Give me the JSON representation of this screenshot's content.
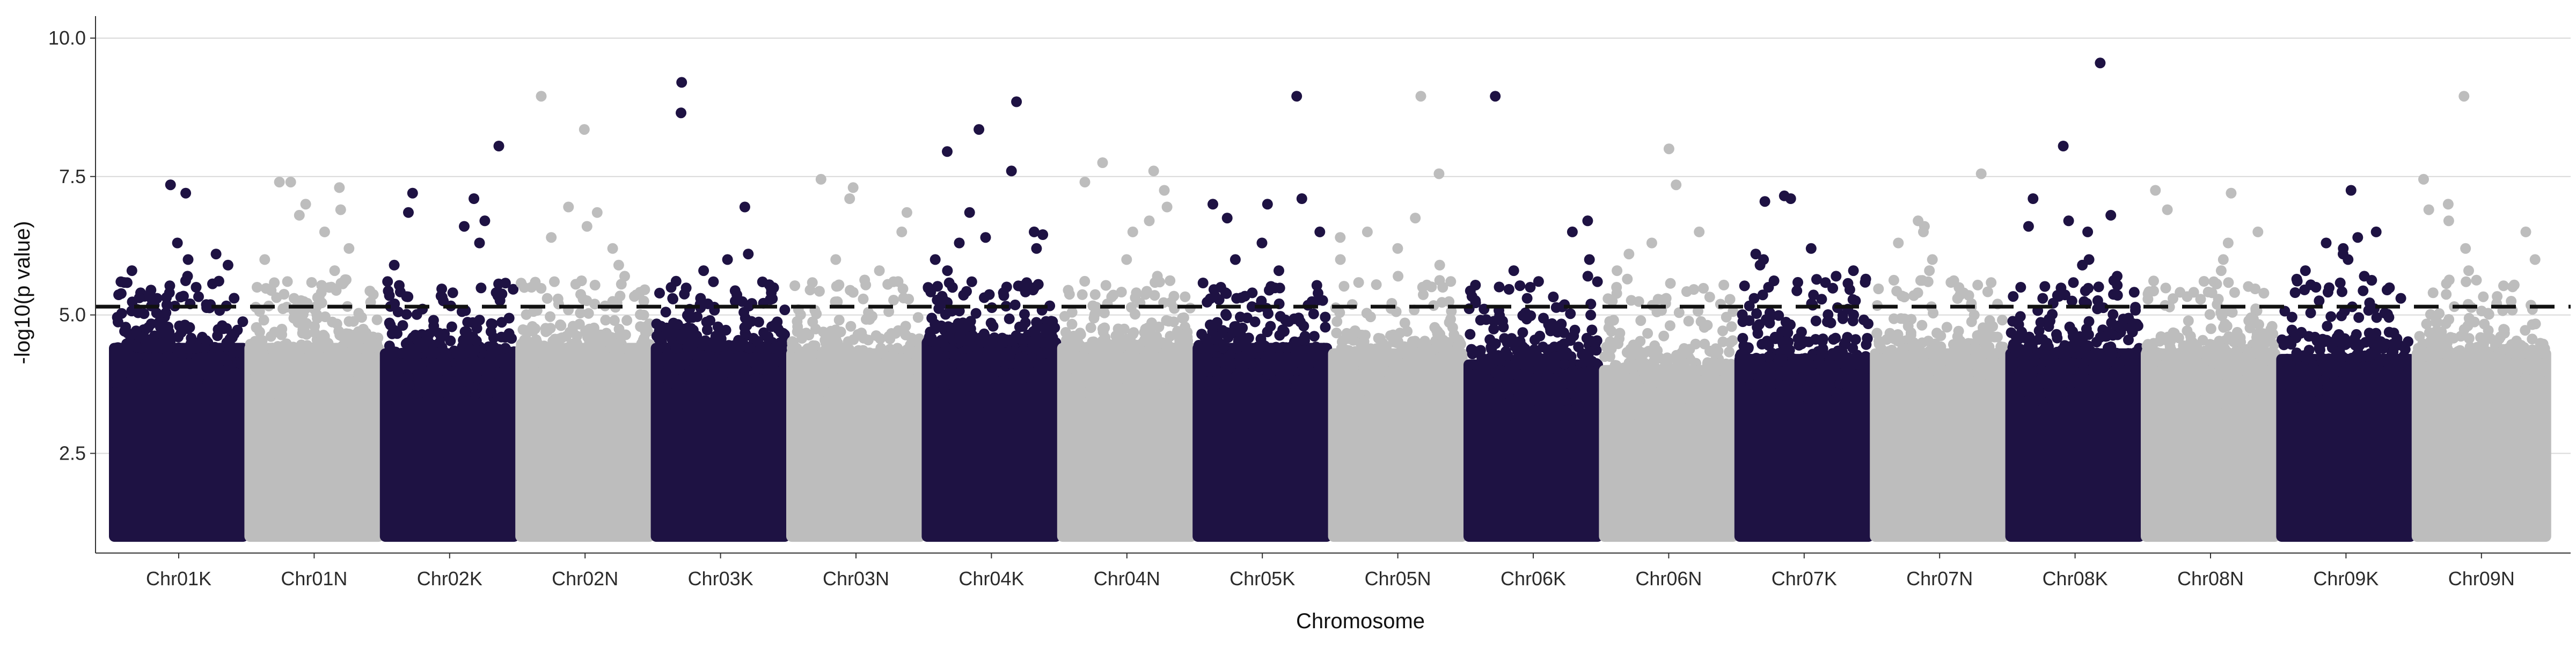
{
  "colors": {
    "dark": "#1e1243",
    "light": "#bdbdbd",
    "threshold": "#111111",
    "axis": "#333333",
    "grid": "#d9d9d9"
  },
  "chart_data": {
    "type": "scatter",
    "title": "",
    "xlabel": "Chromosome",
    "ylabel": "-log10(p value)",
    "ylim": [
      0.7,
      10.3
    ],
    "yticks": [
      2.5,
      5.0,
      7.5,
      10.0
    ],
    "ytick_labels": [
      "2.5",
      "5.0",
      "7.5",
      "10.0"
    ],
    "grid": "horizontal at y-ticks",
    "legend": "none",
    "threshold": 5.15,
    "chromosomes": [
      "Chr01K",
      "Chr01N",
      "Chr02K",
      "Chr02N",
      "Chr03K",
      "Chr03N",
      "Chr04K",
      "Chr04N",
      "Chr05K",
      "Chr05N",
      "Chr06K",
      "Chr06N",
      "Chr07K",
      "Chr07N",
      "Chr08K",
      "Chr08N",
      "Chr09K",
      "Chr09N"
    ],
    "point_colors": [
      "dark",
      "light",
      "dark",
      "light",
      "dark",
      "light",
      "dark",
      "light",
      "dark",
      "light",
      "dark",
      "light",
      "dark",
      "light",
      "dark",
      "light",
      "dark",
      "light"
    ],
    "dense_base": {
      "min": 1.0,
      "max_by_chromosome": [
        4.4,
        4.4,
        4.3,
        4.4,
        4.4,
        4.3,
        4.5,
        4.4,
        4.4,
        4.3,
        4.1,
        4.0,
        4.2,
        4.3,
        4.3,
        4.3,
        4.2,
        4.3
      ]
    },
    "mid_points_per_chromosome": 110,
    "peaks": [
      {
        "chrom": "Chr01K",
        "values": [
          7.35,
          7.2,
          6.3,
          6.1,
          6.0,
          5.9,
          5.8,
          5.7,
          5.6,
          5.5,
          5.4,
          5.3,
          5.2
        ]
      },
      {
        "chrom": "Chr01N",
        "values": [
          7.4,
          7.4,
          7.3,
          7.0,
          6.9,
          6.8,
          6.5,
          6.2,
          6.0,
          5.8,
          5.5,
          5.3
        ]
      },
      {
        "chrom": "Chr02K",
        "values": [
          8.05,
          7.2,
          7.1,
          6.85,
          6.7,
          6.6,
          6.3,
          5.9,
          5.4,
          5.2
        ]
      },
      {
        "chrom": "Chr02N",
        "values": [
          8.95,
          8.35,
          6.95,
          6.85,
          6.6,
          6.4,
          6.2,
          5.9,
          5.7,
          5.5
        ]
      },
      {
        "chrom": "Chr03K",
        "values": [
          9.2,
          8.65,
          6.95,
          6.1,
          6.0,
          5.8,
          5.6,
          5.4,
          5.2
        ]
      },
      {
        "chrom": "Chr03N",
        "values": [
          7.45,
          7.3,
          7.1,
          6.85,
          6.5,
          6.0,
          5.8,
          5.6
        ]
      },
      {
        "chrom": "Chr04K",
        "values": [
          8.85,
          8.35,
          7.95,
          7.6,
          6.85,
          6.5,
          6.45,
          6.4,
          6.3,
          6.2,
          6.0,
          5.8,
          5.6,
          5.4,
          5.2
        ]
      },
      {
        "chrom": "Chr04N",
        "values": [
          7.75,
          7.6,
          7.4,
          7.25,
          6.95,
          6.7,
          6.5,
          6.0,
          5.7,
          5.4
        ]
      },
      {
        "chrom": "Chr05K",
        "values": [
          8.95,
          7.1,
          7.0,
          7.0,
          6.75,
          6.5,
          6.3,
          6.0,
          5.8,
          5.5,
          5.3
        ]
      },
      {
        "chrom": "Chr05N",
        "values": [
          8.95,
          7.55,
          6.75,
          6.5,
          6.4,
          6.2,
          6.0,
          5.9,
          5.7,
          5.5
        ]
      },
      {
        "chrom": "Chr06K",
        "values": [
          8.95,
          6.7,
          6.5,
          6.0,
          5.8,
          5.7,
          5.5,
          5.3
        ]
      },
      {
        "chrom": "Chr06N",
        "values": [
          8.0,
          7.35,
          6.5,
          6.3,
          6.1,
          5.8,
          5.5,
          5.3
        ]
      },
      {
        "chrom": "Chr07K",
        "values": [
          7.15,
          7.1,
          7.05,
          6.2,
          6.1,
          6.0,
          5.9,
          5.8,
          5.7,
          5.5,
          5.3
        ]
      },
      {
        "chrom": "Chr07N",
        "values": [
          7.55,
          6.7,
          6.6,
          6.5,
          6.3,
          6.0,
          5.8,
          5.6,
          5.4
        ]
      },
      {
        "chrom": "Chr08K",
        "values": [
          9.55,
          8.05,
          7.1,
          6.8,
          6.7,
          6.6,
          6.5,
          6.0,
          5.9,
          5.7,
          5.5,
          5.3
        ]
      },
      {
        "chrom": "Chr08N",
        "values": [
          7.25,
          7.2,
          6.9,
          6.5,
          6.3,
          6.0,
          5.8,
          5.6,
          5.4
        ]
      },
      {
        "chrom": "Chr09K",
        "values": [
          7.25,
          6.5,
          6.4,
          6.3,
          6.2,
          6.1,
          6.0,
          5.8,
          5.7,
          5.5,
          5.3
        ]
      },
      {
        "chrom": "Chr09N",
        "values": [
          8.95,
          7.45,
          7.0,
          6.9,
          6.7,
          6.5,
          6.2,
          6.0,
          5.8,
          5.6,
          5.4
        ]
      }
    ]
  }
}
